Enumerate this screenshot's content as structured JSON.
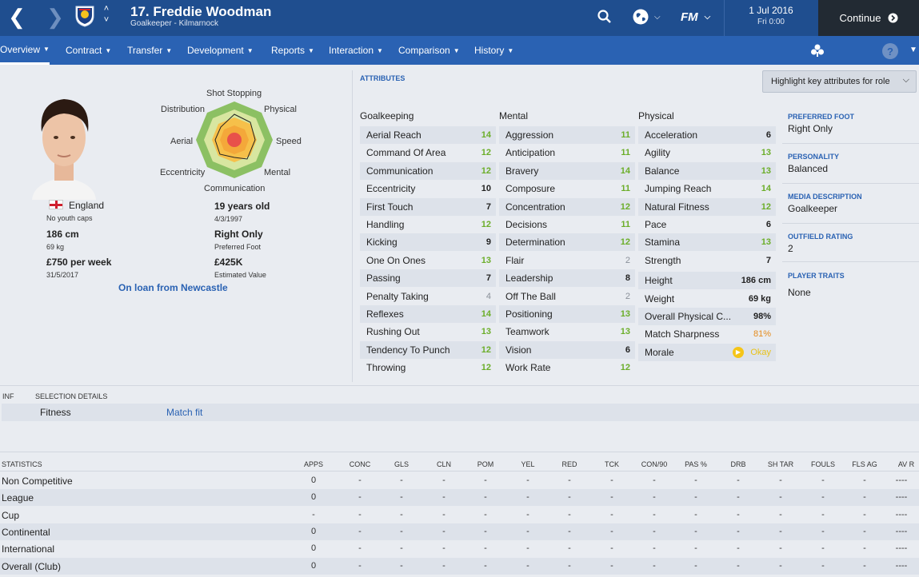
{
  "header": {
    "player_title": "17. Freddie Woodman",
    "player_subtitle": "Goalkeeper - Kilmarnock",
    "date": "1 Jul 2016",
    "time": "Fri 0:00",
    "continue_label": "Continue",
    "fm_label": "FM"
  },
  "tabs": [
    {
      "label": "Overview"
    },
    {
      "label": "Contract"
    },
    {
      "label": "Transfer"
    },
    {
      "label": "Development"
    },
    {
      "label": "Reports"
    },
    {
      "label": "Interaction"
    },
    {
      "label": "Comparison"
    },
    {
      "label": "History"
    }
  ],
  "help_label": "?",
  "profile": {
    "nationality": "England",
    "youth_caps": "No youth caps",
    "height": "186 cm",
    "weight": "69 kg",
    "wage": "£750 per week",
    "contract_end": "31/5/2017",
    "age": "19 years old",
    "dob": "4/3/1997",
    "foot": "Right Only",
    "foot_label": "Preferred Foot",
    "value": "£425K",
    "value_label": "Estimated Value",
    "loan": "On loan from Newcastle"
  },
  "radar": {
    "labels": [
      "Shot Stopping",
      "Physical",
      "Speed",
      "Mental",
      "Communication",
      "Eccentricity",
      "Aerial",
      "Distribution"
    ]
  },
  "attributes_label": "Attributes",
  "highlight_label": "Highlight key attributes for role",
  "goalkeeping": {
    "title": "Goalkeeping",
    "items": [
      {
        "n": "Aerial Reach",
        "v": "14"
      },
      {
        "n": "Command Of Area",
        "v": "12"
      },
      {
        "n": "Communication",
        "v": "12"
      },
      {
        "n": "Eccentricity",
        "v": "10"
      },
      {
        "n": "First Touch",
        "v": "7"
      },
      {
        "n": "Handling",
        "v": "12"
      },
      {
        "n": "Kicking",
        "v": "9"
      },
      {
        "n": "One On Ones",
        "v": "13"
      },
      {
        "n": "Passing",
        "v": "7"
      },
      {
        "n": "Penalty Taking",
        "v": "4"
      },
      {
        "n": "Reflexes",
        "v": "14"
      },
      {
        "n": "Rushing Out",
        "v": "13"
      },
      {
        "n": "Tendency To Punch",
        "v": "12"
      },
      {
        "n": "Throwing",
        "v": "12"
      }
    ]
  },
  "mental": {
    "title": "Mental",
    "items": [
      {
        "n": "Aggression",
        "v": "11"
      },
      {
        "n": "Anticipation",
        "v": "11"
      },
      {
        "n": "Bravery",
        "v": "14"
      },
      {
        "n": "Composure",
        "v": "11"
      },
      {
        "n": "Concentration",
        "v": "12"
      },
      {
        "n": "Decisions",
        "v": "11"
      },
      {
        "n": "Determination",
        "v": "12"
      },
      {
        "n": "Flair",
        "v": "2"
      },
      {
        "n": "Leadership",
        "v": "8"
      },
      {
        "n": "Off The Ball",
        "v": "2"
      },
      {
        "n": "Positioning",
        "v": "13"
      },
      {
        "n": "Teamwork",
        "v": "13"
      },
      {
        "n": "Vision",
        "v": "6"
      },
      {
        "n": "Work Rate",
        "v": "12"
      }
    ]
  },
  "physical": {
    "title": "Physical",
    "items": [
      {
        "n": "Acceleration",
        "v": "6"
      },
      {
        "n": "Agility",
        "v": "13"
      },
      {
        "n": "Balance",
        "v": "13"
      },
      {
        "n": "Jumping Reach",
        "v": "14"
      },
      {
        "n": "Natural Fitness",
        "v": "12"
      },
      {
        "n": "Pace",
        "v": "6"
      },
      {
        "n": "Stamina",
        "v": "13"
      },
      {
        "n": "Strength",
        "v": "7"
      },
      {
        "n": "Height",
        "v": "186 cm"
      },
      {
        "n": "Weight",
        "v": "69 kg"
      },
      {
        "n": "Overall Physical C...",
        "v": "98%"
      },
      {
        "n": "Match Sharpness",
        "v": "81%"
      },
      {
        "n": "Morale",
        "v": "Okay"
      }
    ]
  },
  "info": {
    "preferred_foot_label": "Preferred Foot",
    "preferred_foot": "Right Only",
    "personality_label": "Personality",
    "personality": "Balanced",
    "media_label": "Media Description",
    "media": "Goalkeeper",
    "outfield_label": "Outfield Rating",
    "outfield": "2",
    "traits_label": "Player Traits",
    "traits": "None"
  },
  "selection": {
    "inf_label": "INF",
    "title": "SELECTION DETAILS",
    "fitness_label": "Fitness",
    "fitness_value": "Match fit"
  },
  "statistics": {
    "title": "STATISTICS",
    "columns": [
      "APPS",
      "CONC",
      "GLS",
      "CLN",
      "POM",
      "YEL",
      "RED",
      "TCK",
      "CON/90",
      "PAS %",
      "DRB",
      "SH TAR",
      "FOULS",
      "FLS AG",
      "AV R"
    ],
    "rows": [
      {
        "label": "Non Competitive",
        "vals": [
          "0",
          "-",
          "-",
          "-",
          "-",
          "-",
          "-",
          "-",
          "-",
          "-",
          "-",
          "-",
          "-",
          "-",
          "----"
        ]
      },
      {
        "label": "League",
        "vals": [
          "0",
          "-",
          "-",
          "-",
          "-",
          "-",
          "-",
          "-",
          "-",
          "-",
          "-",
          "-",
          "-",
          "-",
          "----"
        ]
      },
      {
        "label": "Cup",
        "vals": [
          "-",
          "-",
          "-",
          "-",
          "-",
          "-",
          "-",
          "-",
          "-",
          "-",
          "-",
          "-",
          "-",
          "-",
          "----"
        ]
      },
      {
        "label": "Continental",
        "vals": [
          "0",
          "-",
          "-",
          "-",
          "-",
          "-",
          "-",
          "-",
          "-",
          "-",
          "-",
          "-",
          "-",
          "-",
          "----"
        ]
      },
      {
        "label": "International",
        "vals": [
          "0",
          "-",
          "-",
          "-",
          "-",
          "-",
          "-",
          "-",
          "-",
          "-",
          "-",
          "-",
          "-",
          "-",
          "----"
        ]
      },
      {
        "label": "Overall (Club)",
        "vals": [
          "0",
          "-",
          "-",
          "-",
          "-",
          "-",
          "-",
          "-",
          "-",
          "-",
          "-",
          "-",
          "-",
          "-",
          "----"
        ]
      }
    ]
  }
}
